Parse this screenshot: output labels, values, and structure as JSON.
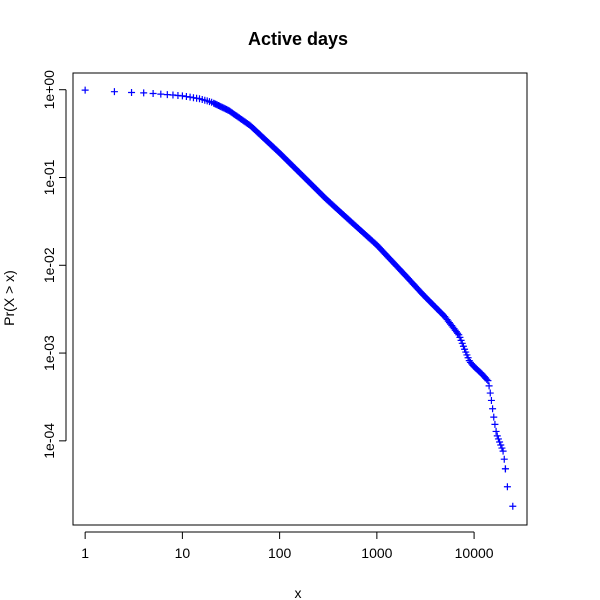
{
  "chart_data": {
    "type": "scatter",
    "title": "Active days",
    "xlabel": "x",
    "ylabel": "Pr(X > x)",
    "xscale": "log",
    "yscale": "log",
    "xlim": [
      0.75,
      35000
    ],
    "ylim": [
      1.1e-05,
      1.55
    ],
    "grid": false,
    "marker": "+",
    "color": "#0000ff",
    "x_ticks": [
      {
        "value": 1,
        "label": "1"
      },
      {
        "value": 10,
        "label": "10"
      },
      {
        "value": 100,
        "label": "100"
      },
      {
        "value": 1000,
        "label": "1000"
      },
      {
        "value": 10000,
        "label": "10000"
      }
    ],
    "y_ticks": [
      {
        "value": 1,
        "label": "1e+00"
      },
      {
        "value": 0.1,
        "label": "1e-01"
      },
      {
        "value": 0.01,
        "label": "1e-02"
      },
      {
        "value": 0.001,
        "label": "1e-03"
      },
      {
        "value": 0.0001,
        "label": "1e-04"
      }
    ],
    "anchor_points": [
      [
        1,
        0.99
      ],
      [
        2,
        0.95
      ],
      [
        3,
        0.93
      ],
      [
        4,
        0.92
      ],
      [
        5,
        0.905
      ],
      [
        6,
        0.89
      ],
      [
        8,
        0.87
      ],
      [
        10,
        0.85
      ],
      [
        15,
        0.79
      ],
      [
        20,
        0.72
      ],
      [
        30,
        0.58
      ],
      [
        50,
        0.39
      ],
      [
        100,
        0.19
      ],
      [
        200,
        0.089
      ],
      [
        300,
        0.057
      ],
      [
        500,
        0.034
      ],
      [
        1000,
        0.017
      ],
      [
        2000,
        0.0075
      ],
      [
        3000,
        0.0046
      ],
      [
        5000,
        0.0026
      ],
      [
        7000,
        0.0016
      ],
      [
        8000,
        0.0011
      ],
      [
        9000,
        0.0008
      ],
      [
        10000,
        0.0007
      ],
      [
        12000,
        0.00058
      ],
      [
        14000,
        0.00048
      ],
      [
        15000,
        0.0003
      ],
      [
        16000,
        0.00018
      ],
      [
        17000,
        0.00012
      ],
      [
        20000,
        7.5e-05
      ],
      [
        21000,
        4.8e-05
      ],
      [
        22000,
        3e-05
      ],
      [
        25000,
        1.8e-05
      ]
    ]
  }
}
